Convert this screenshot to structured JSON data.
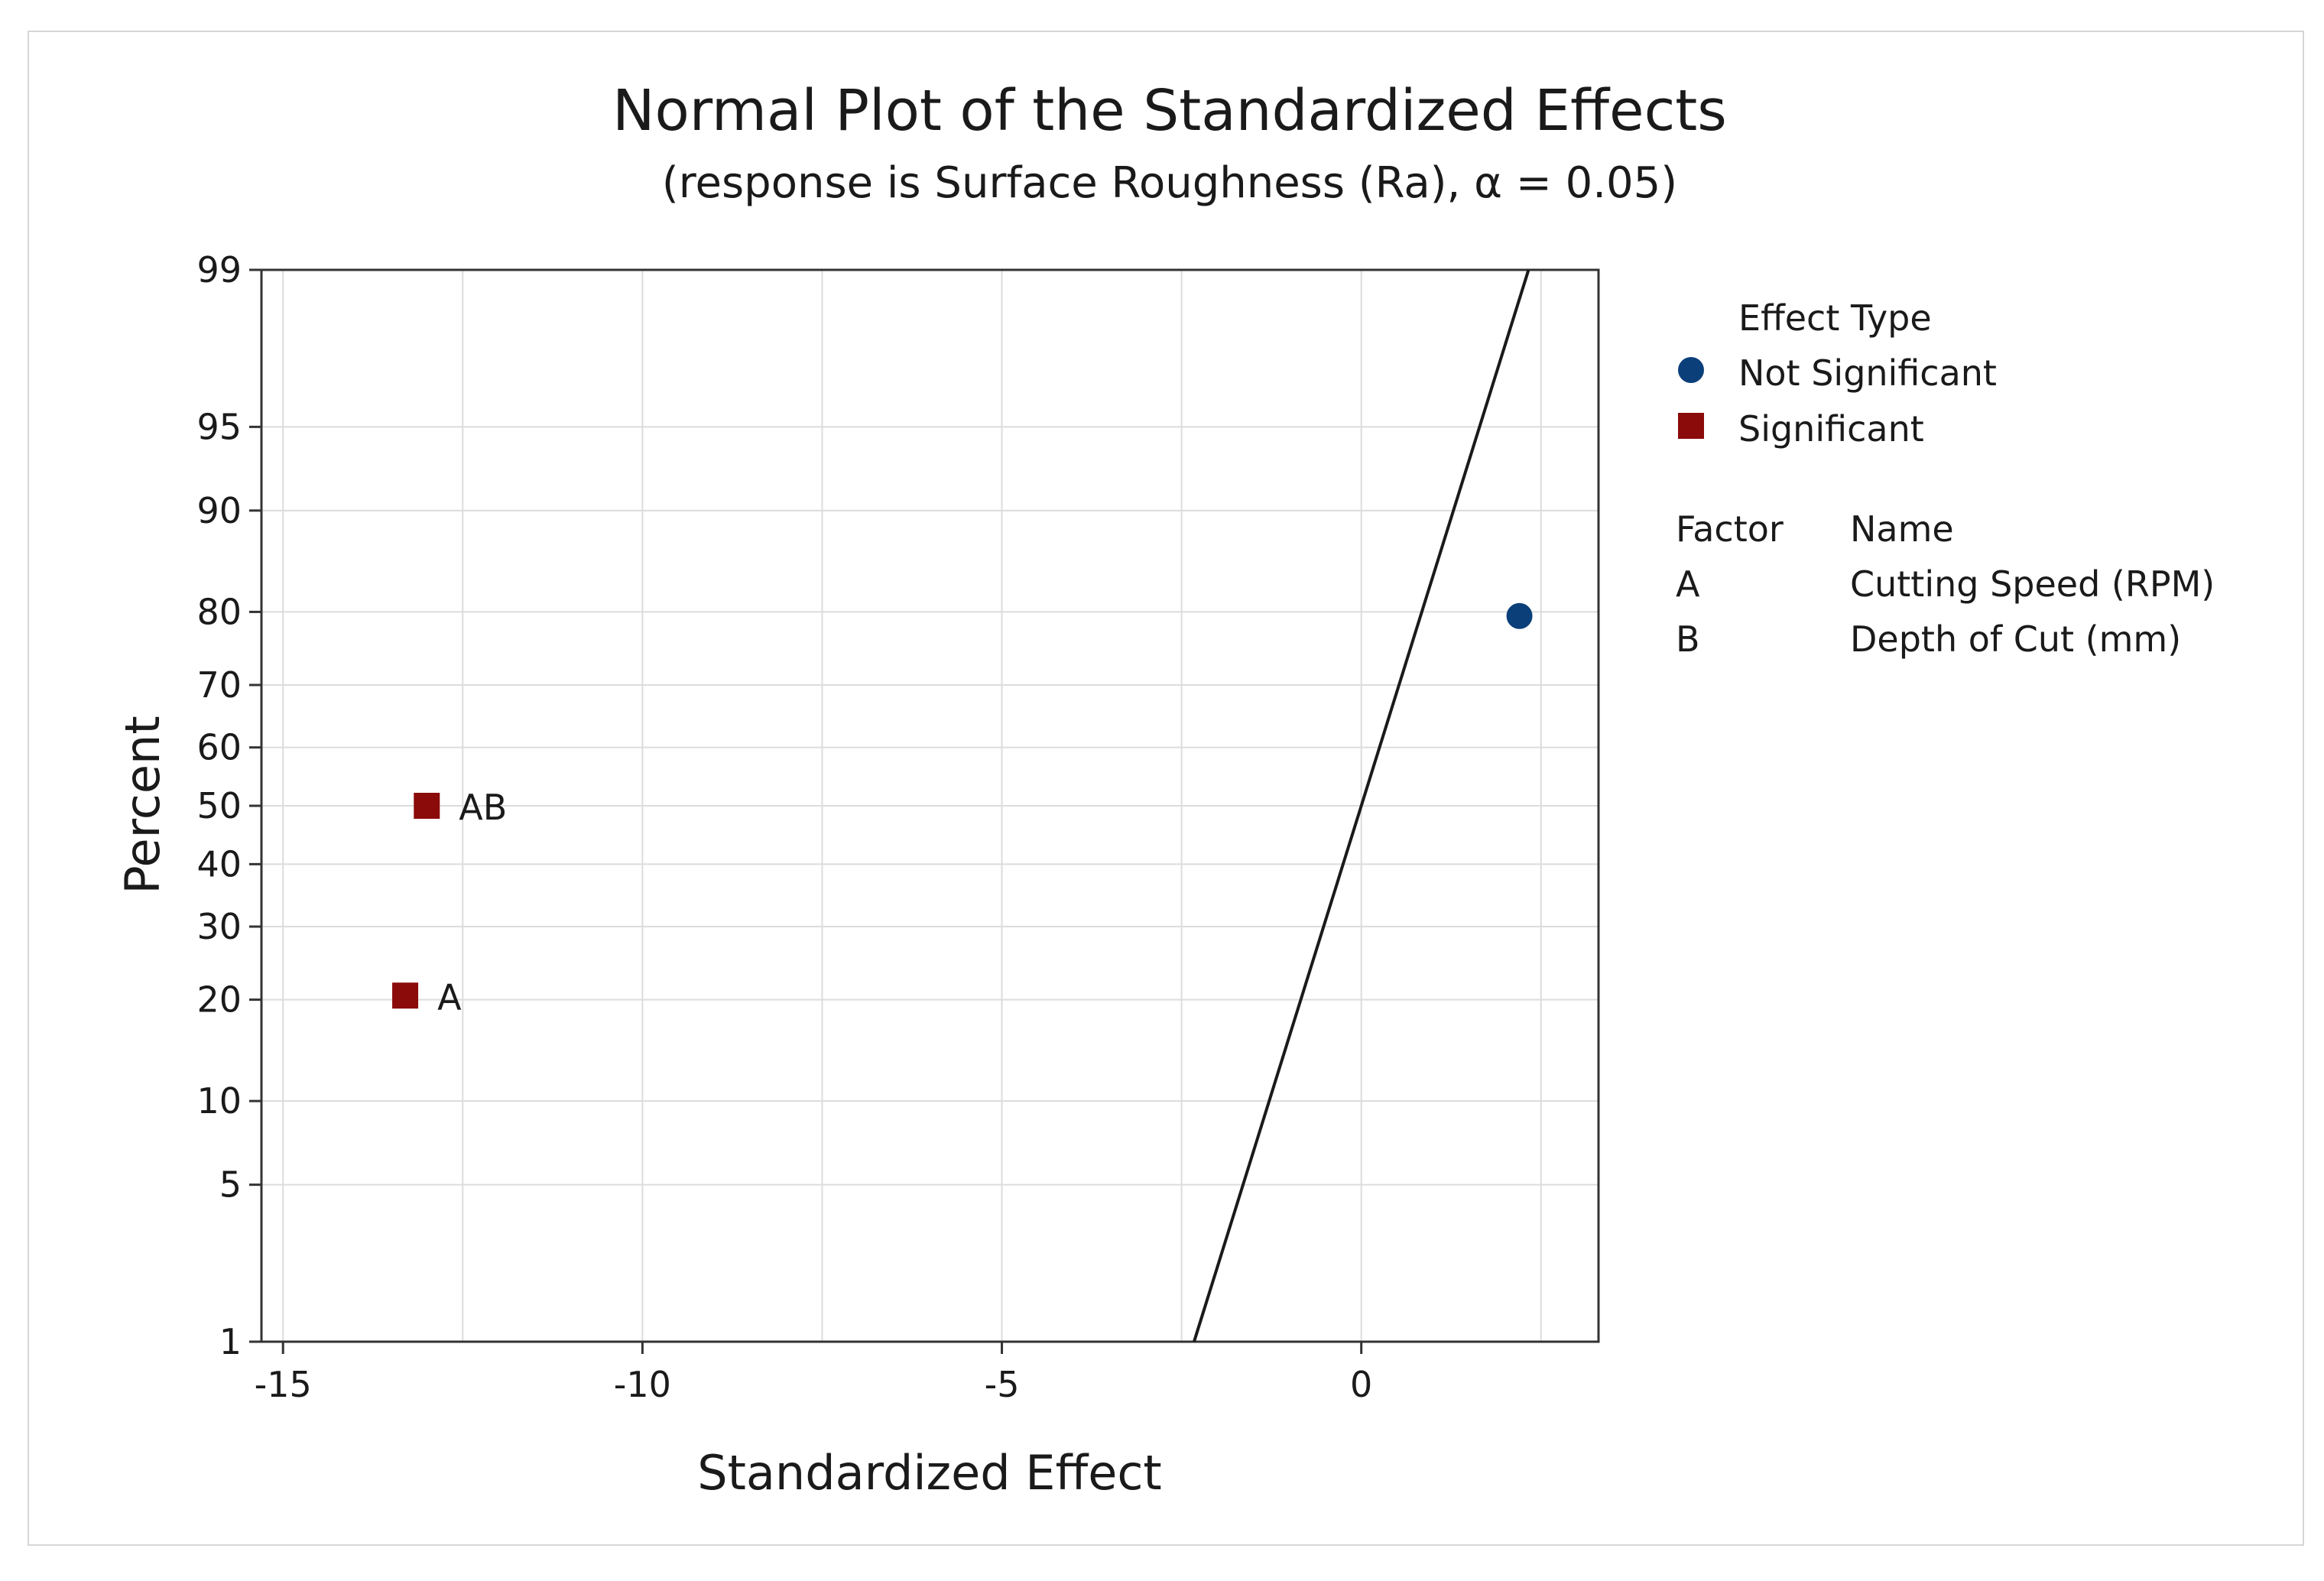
{
  "chart_data": {
    "type": "scatter",
    "title": "Normal Plot of the Standardized Effects",
    "subtitle": "(response is Surface Roughness (Ra), α = 0.05)",
    "xlabel": "Standardized Effect",
    "ylabel": "Percent",
    "xlim": [
      -15.3,
      3.3
    ],
    "ylim": [
      1,
      99
    ],
    "y_scale": "normal-probability",
    "x_ticks": [
      -15,
      -10,
      -5,
      0
    ],
    "x_tick_labels": [
      "-15",
      "-10",
      "-5",
      "0"
    ],
    "x_grid": [
      -15,
      -12.5,
      -10,
      -7.5,
      -5,
      -2.5,
      0,
      2.5
    ],
    "y_ticks": [
      1,
      5,
      10,
      20,
      30,
      40,
      50,
      60,
      70,
      80,
      90,
      95,
      99
    ],
    "y_tick_labels": [
      "1",
      "5",
      "10",
      "20",
      "30",
      "40",
      "50",
      "60",
      "70",
      "80",
      "90",
      "95",
      "99"
    ],
    "grid": true,
    "reference_line": {
      "mean": 0,
      "sd": 1.0
    },
    "series": [
      {
        "name": "Not Significant",
        "marker": "circle",
        "color": "#0b3f7a",
        "points": [
          {
            "x": 2.2,
            "y": 79.5,
            "label": ""
          }
        ]
      },
      {
        "name": "Significant",
        "marker": "square",
        "color": "#8b0a0a",
        "points": [
          {
            "x": -13.3,
            "y": 20.5,
            "label": "A"
          },
          {
            "x": -13.0,
            "y": 50.0,
            "label": "AB"
          }
        ]
      }
    ],
    "legend": {
      "placement": "right",
      "title": "Effect Type",
      "entries": [
        "Not Significant",
        "Significant"
      ]
    },
    "factor_table": {
      "headers": [
        "Factor",
        "Name"
      ],
      "rows": [
        {
          "factor": "A",
          "name": "Cutting Speed (RPM)"
        },
        {
          "factor": "B",
          "name": "Depth of Cut (mm)"
        }
      ]
    }
  }
}
